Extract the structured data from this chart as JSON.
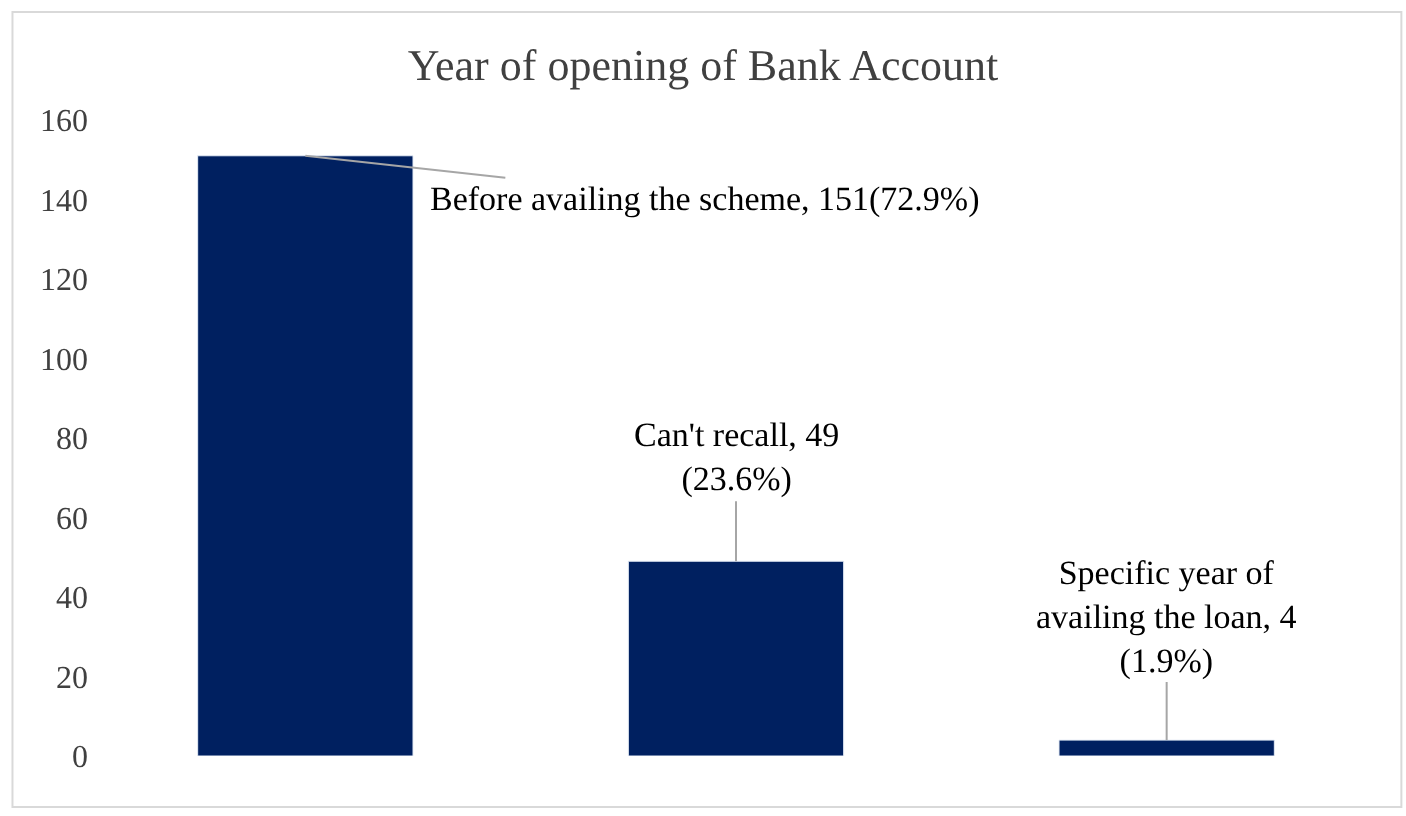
{
  "chart_data": {
    "type": "bar",
    "title": "Year of opening of Bank Account",
    "categories": [
      null,
      null,
      null
    ],
    "values": [
      151,
      49,
      4
    ],
    "color": "#002060",
    "value_labels": [
      "Before availing the scheme, 151(72.9%)",
      "Can't recall, 49\n(23.6%)",
      "Specific year of\navailing the loan, 4\n(1.9%)"
    ],
    "ylim": [
      0,
      160
    ],
    "yticks": [
      0,
      20,
      40,
      60,
      80,
      100,
      120,
      140,
      160
    ]
  }
}
